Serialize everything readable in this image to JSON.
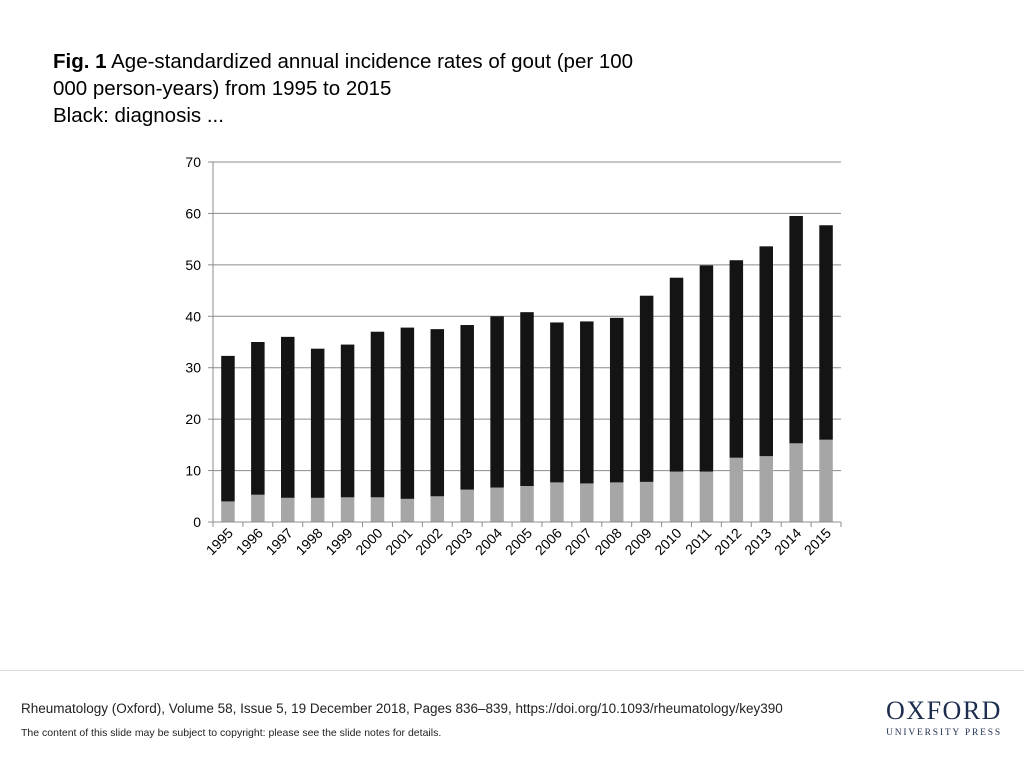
{
  "figure": {
    "label": "Fig. 1",
    "caption_line1": "Age-standardized annual incidence rates of gout (per 100",
    "caption_line2": "000 person-years) from 1995 to 2015",
    "caption_line3": "Black: diagnosis ..."
  },
  "chart_data": {
    "type": "bar",
    "stacked": true,
    "title": "",
    "xlabel": "",
    "ylabel": "",
    "ylim": [
      0,
      70
    ],
    "yticks": [
      0,
      10,
      20,
      30,
      40,
      50,
      60,
      70
    ],
    "grid": true,
    "categories": [
      "1995",
      "1996",
      "1997",
      "1998",
      "1999",
      "2000",
      "2001",
      "2002",
      "2003",
      "2004",
      "2005",
      "2006",
      "2007",
      "2008",
      "2009",
      "2010",
      "2011",
      "2012",
      "2013",
      "2014",
      "2015"
    ],
    "series": [
      {
        "name": "grey",
        "color": "#a6a6a6",
        "values": [
          4.0,
          5.3,
          4.7,
          4.7,
          4.8,
          4.8,
          4.5,
          5.0,
          6.3,
          6.7,
          7.0,
          7.7,
          7.5,
          7.7,
          7.8,
          9.8,
          9.8,
          12.5,
          12.8,
          15.3,
          16.0
        ]
      },
      {
        "name": "black",
        "color": "#141414",
        "values": [
          28.3,
          29.7,
          31.3,
          29.0,
          29.7,
          32.2,
          33.3,
          32.5,
          32.0,
          33.3,
          33.8,
          31.1,
          31.5,
          32.0,
          36.2,
          37.7,
          40.1,
          38.4,
          40.8,
          44.2,
          41.7
        ]
      }
    ],
    "totals": [
      32.3,
      35.0,
      36.0,
      33.7,
      34.5,
      37.0,
      37.8,
      37.5,
      38.3,
      40.0,
      40.8,
      38.8,
      39.0,
      39.7,
      44.0,
      47.5,
      49.9,
      50.9,
      53.6,
      59.5,
      57.7
    ]
  },
  "footer": {
    "citation": "Rheumatology (Oxford), Volume 58, Issue 5, 19 December 2018, Pages 836–839, https://doi.org/10.1093/rheumatology/key390",
    "notice": "The content of this slide may be subject to copyright: please see the slide notes for details.",
    "publisher_main": "OXFORD",
    "publisher_sub": "UNIVERSITY PRESS"
  }
}
